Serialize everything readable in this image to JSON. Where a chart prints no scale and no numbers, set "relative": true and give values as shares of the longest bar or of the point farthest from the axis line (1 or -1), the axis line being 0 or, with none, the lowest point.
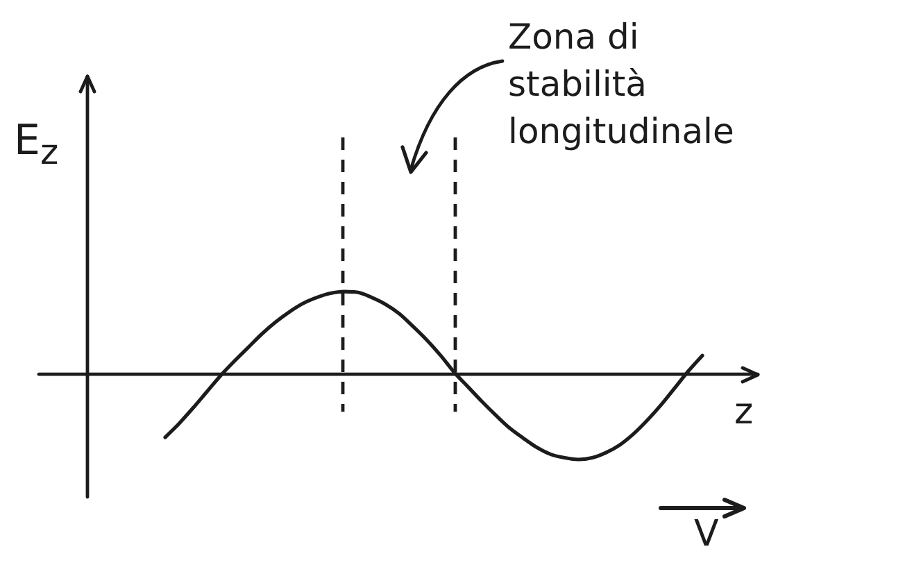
{
  "chart_data": {
    "type": "line",
    "xlabel": "z",
    "ylabel": "E$_{z}$",
    "categories": [
      null,
      null,
      null,
      null,
      null,
      null,
      null,
      null,
      null,
      null,
      null,
      null,
      null,
      null,
      null,
      null,
      null,
      null,
      null,
      null,
      null,
      null,
      null,
      null,
      null,
      null,
      null,
      null,
      null,
      null,
      null,
      null,
      null,
      null,
      null,
      null,
      null,
      null,
      null,
      null
    ],
    "series": [
      {
        "color": "#1c1c1c",
        "values": [
          -0.74,
          -0.58,
          -0.4,
          -0.21,
          -0.02,
          0.15,
          0.31,
          0.47,
          0.61,
          0.73,
          0.83,
          0.9,
          0.95,
          0.97,
          0.96,
          0.9,
          0.82,
          0.71,
          0.56,
          0.4,
          0.22,
          0.02,
          -0.15,
          -0.32,
          -0.48,
          -0.63,
          -0.75,
          -0.86,
          -0.94,
          -0.98,
          -1,
          -0.98,
          -0.92,
          -0.83,
          -0.7,
          -0.54,
          -0.36,
          -0.16,
          0.04,
          0.22
        ]
      }
    ],
    "relative": true,
    "marker": "none",
    "annotations": [
      "Zona di stabilità longitudinale",
      "V"
    ]
  }
}
